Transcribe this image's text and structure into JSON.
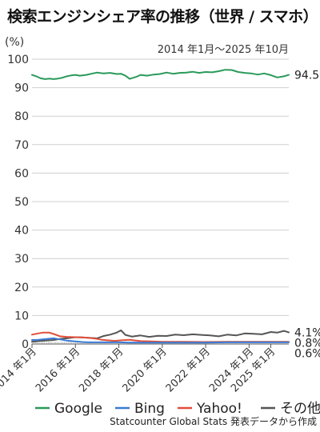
{
  "title": "検索エンジンシェア率の推移（世界 / スマホ）",
  "chart_data": {
    "type": "line",
    "unit_label": "(%)",
    "subtitle": "2014 年1月〜2025 年10月",
    "source": "Statcounter Global Stats 発表データから作成",
    "ylim": [
      0,
      100
    ],
    "yticks": [
      0,
      10,
      20,
      30,
      40,
      50,
      60,
      70,
      80,
      90,
      100
    ],
    "xlim": [
      2014.0,
      2025.83
    ],
    "xticks": [
      {
        "x": 2014.0,
        "label": "2014 年1月"
      },
      {
        "x": 2016.0,
        "label": "2016 年1月"
      },
      {
        "x": 2018.0,
        "label": "2018 年1月"
      },
      {
        "x": 2020.0,
        "label": "2020 年1月"
      },
      {
        "x": 2022.0,
        "label": "2022 年1月"
      },
      {
        "x": 2024.0,
        "label": "2024 年1月"
      },
      {
        "x": 2025.0,
        "label": "2025 年1月"
      }
    ],
    "grid": true,
    "legend_position": "bottom",
    "series": [
      {
        "name": "Google",
        "color": "#2a9a5a",
        "end_label": "94.5%",
        "x": [
          2014.0,
          2014.2,
          2014.4,
          2014.6,
          2014.8,
          2015.0,
          2015.2,
          2015.4,
          2015.6,
          2015.8,
          2016.0,
          2016.2,
          2016.5,
          2016.8,
          2017.0,
          2017.3,
          2017.6,
          2017.9,
          2018.1,
          2018.3,
          2018.5,
          2018.8,
          2019.0,
          2019.3,
          2019.6,
          2019.9,
          2020.2,
          2020.5,
          2020.8,
          2021.1,
          2021.4,
          2021.7,
          2022.0,
          2022.3,
          2022.6,
          2022.9,
          2023.2,
          2023.5,
          2023.8,
          2024.1,
          2024.4,
          2024.7,
          2025.0,
          2025.3,
          2025.6,
          2025.83
        ],
        "values": [
          94.5,
          94.0,
          93.3,
          93.0,
          93.2,
          93.0,
          93.2,
          93.5,
          94.0,
          94.3,
          94.5,
          94.2,
          94.5,
          95.0,
          95.3,
          95.0,
          95.2,
          94.8,
          94.9,
          94.2,
          93.1,
          93.8,
          94.5,
          94.2,
          94.6,
          94.8,
          95.3,
          94.9,
          95.2,
          95.3,
          95.6,
          95.2,
          95.5,
          95.4,
          95.8,
          96.3,
          96.2,
          95.5,
          95.2,
          95.0,
          94.6,
          95.0,
          94.4,
          93.6,
          94.0,
          94.5
        ]
      },
      {
        "name": "Bing",
        "color": "#3a7bd5",
        "end_label": "0.6%",
        "x": [
          2014.0,
          2014.3,
          2014.6,
          2015.0,
          2015.3,
          2015.6,
          2016.0,
          2016.3,
          2016.6,
          2017.0,
          2017.5,
          2018.0,
          2018.5,
          2019.0,
          2019.5,
          2020.0,
          2021.0,
          2022.0,
          2023.0,
          2024.0,
          2025.0,
          2025.83
        ],
        "values": [
          1.4,
          1.5,
          1.7,
          2.0,
          1.6,
          1.2,
          0.9,
          0.7,
          0.6,
          0.6,
          0.6,
          0.6,
          0.5,
          0.5,
          0.5,
          0.5,
          0.5,
          0.5,
          0.6,
          0.6,
          0.6,
          0.6
        ]
      },
      {
        "name": "Yahoo!",
        "color": "#e04e3a",
        "end_label": "0.8%",
        "x": [
          2014.0,
          2014.2,
          2014.5,
          2014.8,
          2015.0,
          2015.3,
          2015.6,
          2016.0,
          2016.3,
          2016.6,
          2016.9,
          2017.2,
          2017.5,
          2017.8,
          2018.1,
          2018.5,
          2019.0,
          2019.5,
          2020.0,
          2021.0,
          2022.0,
          2023.0,
          2024.0,
          2025.0,
          2025.83
        ],
        "values": [
          3.3,
          3.6,
          4.0,
          4.0,
          3.5,
          2.7,
          2.5,
          2.4,
          2.3,
          2.2,
          1.9,
          1.5,
          1.3,
          1.1,
          1.3,
          1.5,
          1.0,
          0.9,
          0.8,
          0.8,
          0.7,
          0.8,
          0.8,
          0.8,
          0.8
        ]
      },
      {
        "name": "その他",
        "color": "#555555",
        "end_label": "4.1%",
        "x": [
          2014.0,
          2014.3,
          2014.6,
          2015.0,
          2015.3,
          2015.6,
          2016.0,
          2016.3,
          2016.6,
          2017.0,
          2017.3,
          2017.6,
          2017.9,
          2018.1,
          2018.3,
          2018.6,
          2019.0,
          2019.4,
          2019.8,
          2020.2,
          2020.6,
          2021.0,
          2021.4,
          2021.8,
          2022.2,
          2022.6,
          2023.0,
          2023.4,
          2023.8,
          2024.2,
          2024.6,
          2025.0,
          2025.3,
          2025.6,
          2025.83
        ],
        "values": [
          0.8,
          1.0,
          1.2,
          1.4,
          1.8,
          2.0,
          2.4,
          2.3,
          2.2,
          2.0,
          2.8,
          3.3,
          4.0,
          4.8,
          3.2,
          2.6,
          3.0,
          2.5,
          2.9,
          2.8,
          3.3,
          3.1,
          3.4,
          3.2,
          3.0,
          2.7,
          3.3,
          3.0,
          3.7,
          3.6,
          3.4,
          4.2,
          4.0,
          4.6,
          4.1
        ]
      }
    ]
  }
}
